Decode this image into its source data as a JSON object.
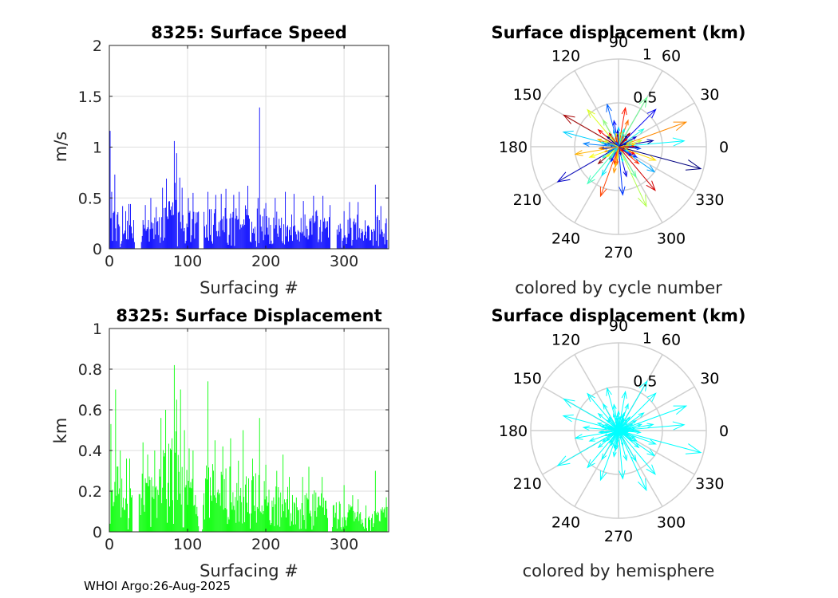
{
  "footer": "WHOI Argo:26-Aug-2025",
  "colors": {
    "speed_bars": "#0000ff",
    "disp_bars": "#00ff00",
    "hemisphere": "#00ffff"
  },
  "chart_data": [
    {
      "id": "speed",
      "type": "bar",
      "title": "8325: Surface Speed",
      "xlabel": "Surfacing #",
      "ylabel": "m/s",
      "xlim": [
        0,
        357
      ],
      "ylim": [
        0,
        2
      ],
      "xticks": [
        "0",
        "100",
        "200",
        "300"
      ],
      "xtick_values": [
        0,
        100,
        200,
        300
      ],
      "yticks": [
        "0",
        "0.5",
        "1",
        "1.5",
        "2"
      ],
      "ytick_values": [
        0,
        0.5,
        1,
        1.5,
        2
      ],
      "grid": true,
      "color": "#0000ff",
      "peaks": [
        [
          1,
          1.16
        ],
        [
          3,
          0.56
        ],
        [
          7,
          0.73
        ],
        [
          11,
          0.36
        ],
        [
          17,
          0.42
        ],
        [
          21,
          0.37
        ],
        [
          25,
          0.44
        ],
        [
          27,
          0.44
        ],
        [
          46,
          0.43
        ],
        [
          53,
          0.5
        ],
        [
          60,
          0.41
        ],
        [
          68,
          0.6
        ],
        [
          73,
          0.69
        ],
        [
          83,
          1.06
        ],
        [
          86,
          0.94
        ],
        [
          90,
          0.7
        ],
        [
          93,
          0.6
        ],
        [
          101,
          0.5
        ],
        [
          107,
          0.55
        ],
        [
          115,
          0.5
        ],
        [
          126,
          0.56
        ],
        [
          136,
          0.53
        ],
        [
          143,
          0.54
        ],
        [
          149,
          0.59
        ],
        [
          159,
          0.53
        ],
        [
          166,
          0.56
        ],
        [
          177,
          0.62
        ],
        [
          190,
          0.5
        ],
        [
          192,
          1.39
        ],
        [
          200,
          0.45
        ],
        [
          212,
          0.5
        ],
        [
          225,
          0.56
        ],
        [
          236,
          0.54
        ],
        [
          248,
          0.47
        ],
        [
          261,
          0.52
        ],
        [
          273,
          0.52
        ],
        [
          282,
          0.43
        ],
        [
          290,
          0.34
        ],
        [
          300,
          0.37
        ],
        [
          307,
          0.46
        ],
        [
          318,
          0.46
        ],
        [
          327,
          0.28
        ],
        [
          340,
          0.63
        ],
        [
          347,
          0.42
        ],
        [
          353,
          0.25
        ]
      ],
      "gaps": [
        [
          33,
          40
        ],
        [
          115,
          120
        ],
        [
          283,
          290
        ]
      ]
    },
    {
      "id": "disp",
      "type": "bar",
      "title": "8325: Surface Displacement",
      "xlabel": "Surfacing #",
      "ylabel": "km",
      "xlim": [
        0,
        357
      ],
      "ylim": [
        0,
        1
      ],
      "xticks": [
        "0",
        "100",
        "200",
        "300"
      ],
      "xtick_values": [
        0,
        100,
        200,
        300
      ],
      "yticks": [
        "0",
        "0.2",
        "0.4",
        "0.6",
        "0.8",
        "1"
      ],
      "ytick_values": [
        0,
        0.2,
        0.4,
        0.6,
        0.8,
        1
      ],
      "grid": true,
      "color": "#00ff00",
      "peaks": [
        [
          2,
          0.53
        ],
        [
          8,
          0.7
        ],
        [
          14,
          0.4
        ],
        [
          22,
          0.36
        ],
        [
          26,
          0.36
        ],
        [
          43,
          0.44
        ],
        [
          49,
          0.38
        ],
        [
          58,
          0.4
        ],
        [
          66,
          0.56
        ],
        [
          72,
          0.6
        ],
        [
          83,
          0.82
        ],
        [
          86,
          0.65
        ],
        [
          91,
          0.7
        ],
        [
          96,
          0.5
        ],
        [
          102,
          0.41
        ],
        [
          107,
          0.4
        ],
        [
          116,
          0.33
        ],
        [
          126,
          0.74
        ],
        [
          135,
          0.45
        ],
        [
          145,
          0.42
        ],
        [
          155,
          0.46
        ],
        [
          165,
          0.35
        ],
        [
          171,
          0.5
        ],
        [
          183,
          0.36
        ],
        [
          192,
          0.56
        ],
        [
          200,
          0.33
        ],
        [
          214,
          0.3
        ],
        [
          222,
          0.38
        ],
        [
          230,
          0.27
        ],
        [
          247,
          0.27
        ],
        [
          255,
          0.32
        ],
        [
          272,
          0.27
        ],
        [
          280,
          0.23
        ],
        [
          300,
          0.23
        ],
        [
          311,
          0.18
        ],
        [
          318,
          0.16
        ],
        [
          328,
          0.13
        ],
        [
          340,
          0.3
        ],
        [
          352,
          0.12
        ]
      ],
      "gaps": [
        [
          30,
          37
        ],
        [
          115,
          118
        ],
        [
          280,
          284
        ]
      ]
    },
    {
      "id": "polar_cycle",
      "type": "polar",
      "title": "Surface displacement (km)",
      "xlabel": "colored by cycle number",
      "rlim": [
        0,
        1
      ],
      "rticks": [
        "0.5",
        "1"
      ],
      "rtick_values": [
        0.5,
        1
      ],
      "angle_ticks": [
        "0",
        "30",
        "60",
        "90",
        "120",
        "150",
        "180",
        "210",
        "240",
        "270",
        "300",
        "330"
      ],
      "angle_tick_values": [
        0,
        30,
        60,
        90,
        120,
        150,
        180,
        210,
        240,
        270,
        300,
        330
      ],
      "color_mode": "cycle",
      "vectors": [
        [
          0.97,
          345
        ],
        [
          0.75,
          5
        ],
        [
          0.82,
          20
        ],
        [
          0.6,
          45
        ],
        [
          0.65,
          60
        ],
        [
          0.45,
          80
        ],
        [
          0.5,
          105
        ],
        [
          0.55,
          130
        ],
        [
          0.72,
          150
        ],
        [
          0.65,
          165
        ],
        [
          0.5,
          190
        ],
        [
          0.8,
          210
        ],
        [
          0.55,
          230
        ],
        [
          0.6,
          250
        ],
        [
          0.55,
          275
        ],
        [
          0.75,
          295
        ],
        [
          0.65,
          310
        ],
        [
          0.5,
          325
        ],
        [
          0.45,
          340
        ],
        [
          0.4,
          10
        ],
        [
          0.35,
          35
        ],
        [
          0.32,
          70
        ],
        [
          0.3,
          100
        ],
        [
          0.35,
          120
        ],
        [
          0.3,
          140
        ],
        [
          0.4,
          175
        ],
        [
          0.35,
          200
        ],
        [
          0.3,
          220
        ],
        [
          0.38,
          240
        ],
        [
          0.3,
          260
        ],
        [
          0.35,
          285
        ],
        [
          0.4,
          300
        ],
        [
          0.3,
          320
        ],
        [
          0.25,
          355
        ],
        [
          0.27,
          15
        ],
        [
          0.2,
          50
        ],
        [
          0.22,
          90
        ],
        [
          0.25,
          160
        ],
        [
          0.2,
          185
        ],
        [
          0.22,
          215
        ],
        [
          0.2,
          265
        ],
        [
          0.24,
          330
        ]
      ]
    },
    {
      "id": "polar_hemi",
      "type": "polar",
      "title": "Surface displacement (km)",
      "xlabel": "colored by hemisphere",
      "rlim": [
        0,
        1
      ],
      "rticks": [
        "0.5",
        "1"
      ],
      "rtick_values": [
        0.5,
        1
      ],
      "angle_ticks": [
        "0",
        "30",
        "60",
        "90",
        "120",
        "150",
        "180",
        "210",
        "240",
        "270",
        "300",
        "330"
      ],
      "angle_tick_values": [
        0,
        30,
        60,
        90,
        120,
        150,
        180,
        210,
        240,
        270,
        300,
        330
      ],
      "color_mode": "hemisphere",
      "color": "#00ffff",
      "vectors": [
        [
          0.97,
          345
        ],
        [
          0.75,
          5
        ],
        [
          0.82,
          20
        ],
        [
          0.6,
          45
        ],
        [
          0.65,
          60
        ],
        [
          0.45,
          80
        ],
        [
          0.5,
          105
        ],
        [
          0.55,
          130
        ],
        [
          0.72,
          150
        ],
        [
          0.65,
          165
        ],
        [
          0.5,
          190
        ],
        [
          0.8,
          210
        ],
        [
          0.55,
          230
        ],
        [
          0.6,
          250
        ],
        [
          0.55,
          275
        ],
        [
          0.75,
          295
        ],
        [
          0.65,
          310
        ],
        [
          0.5,
          325
        ],
        [
          0.45,
          340
        ],
        [
          0.4,
          10
        ],
        [
          0.35,
          35
        ],
        [
          0.32,
          70
        ],
        [
          0.3,
          100
        ],
        [
          0.35,
          120
        ],
        [
          0.3,
          140
        ],
        [
          0.4,
          175
        ],
        [
          0.35,
          200
        ],
        [
          0.3,
          220
        ],
        [
          0.38,
          240
        ],
        [
          0.3,
          260
        ],
        [
          0.35,
          285
        ],
        [
          0.4,
          300
        ],
        [
          0.3,
          320
        ],
        [
          0.25,
          355
        ],
        [
          0.27,
          15
        ],
        [
          0.2,
          50
        ],
        [
          0.22,
          90
        ],
        [
          0.25,
          160
        ],
        [
          0.2,
          185
        ],
        [
          0.22,
          215
        ],
        [
          0.2,
          265
        ],
        [
          0.24,
          330
        ]
      ]
    }
  ]
}
